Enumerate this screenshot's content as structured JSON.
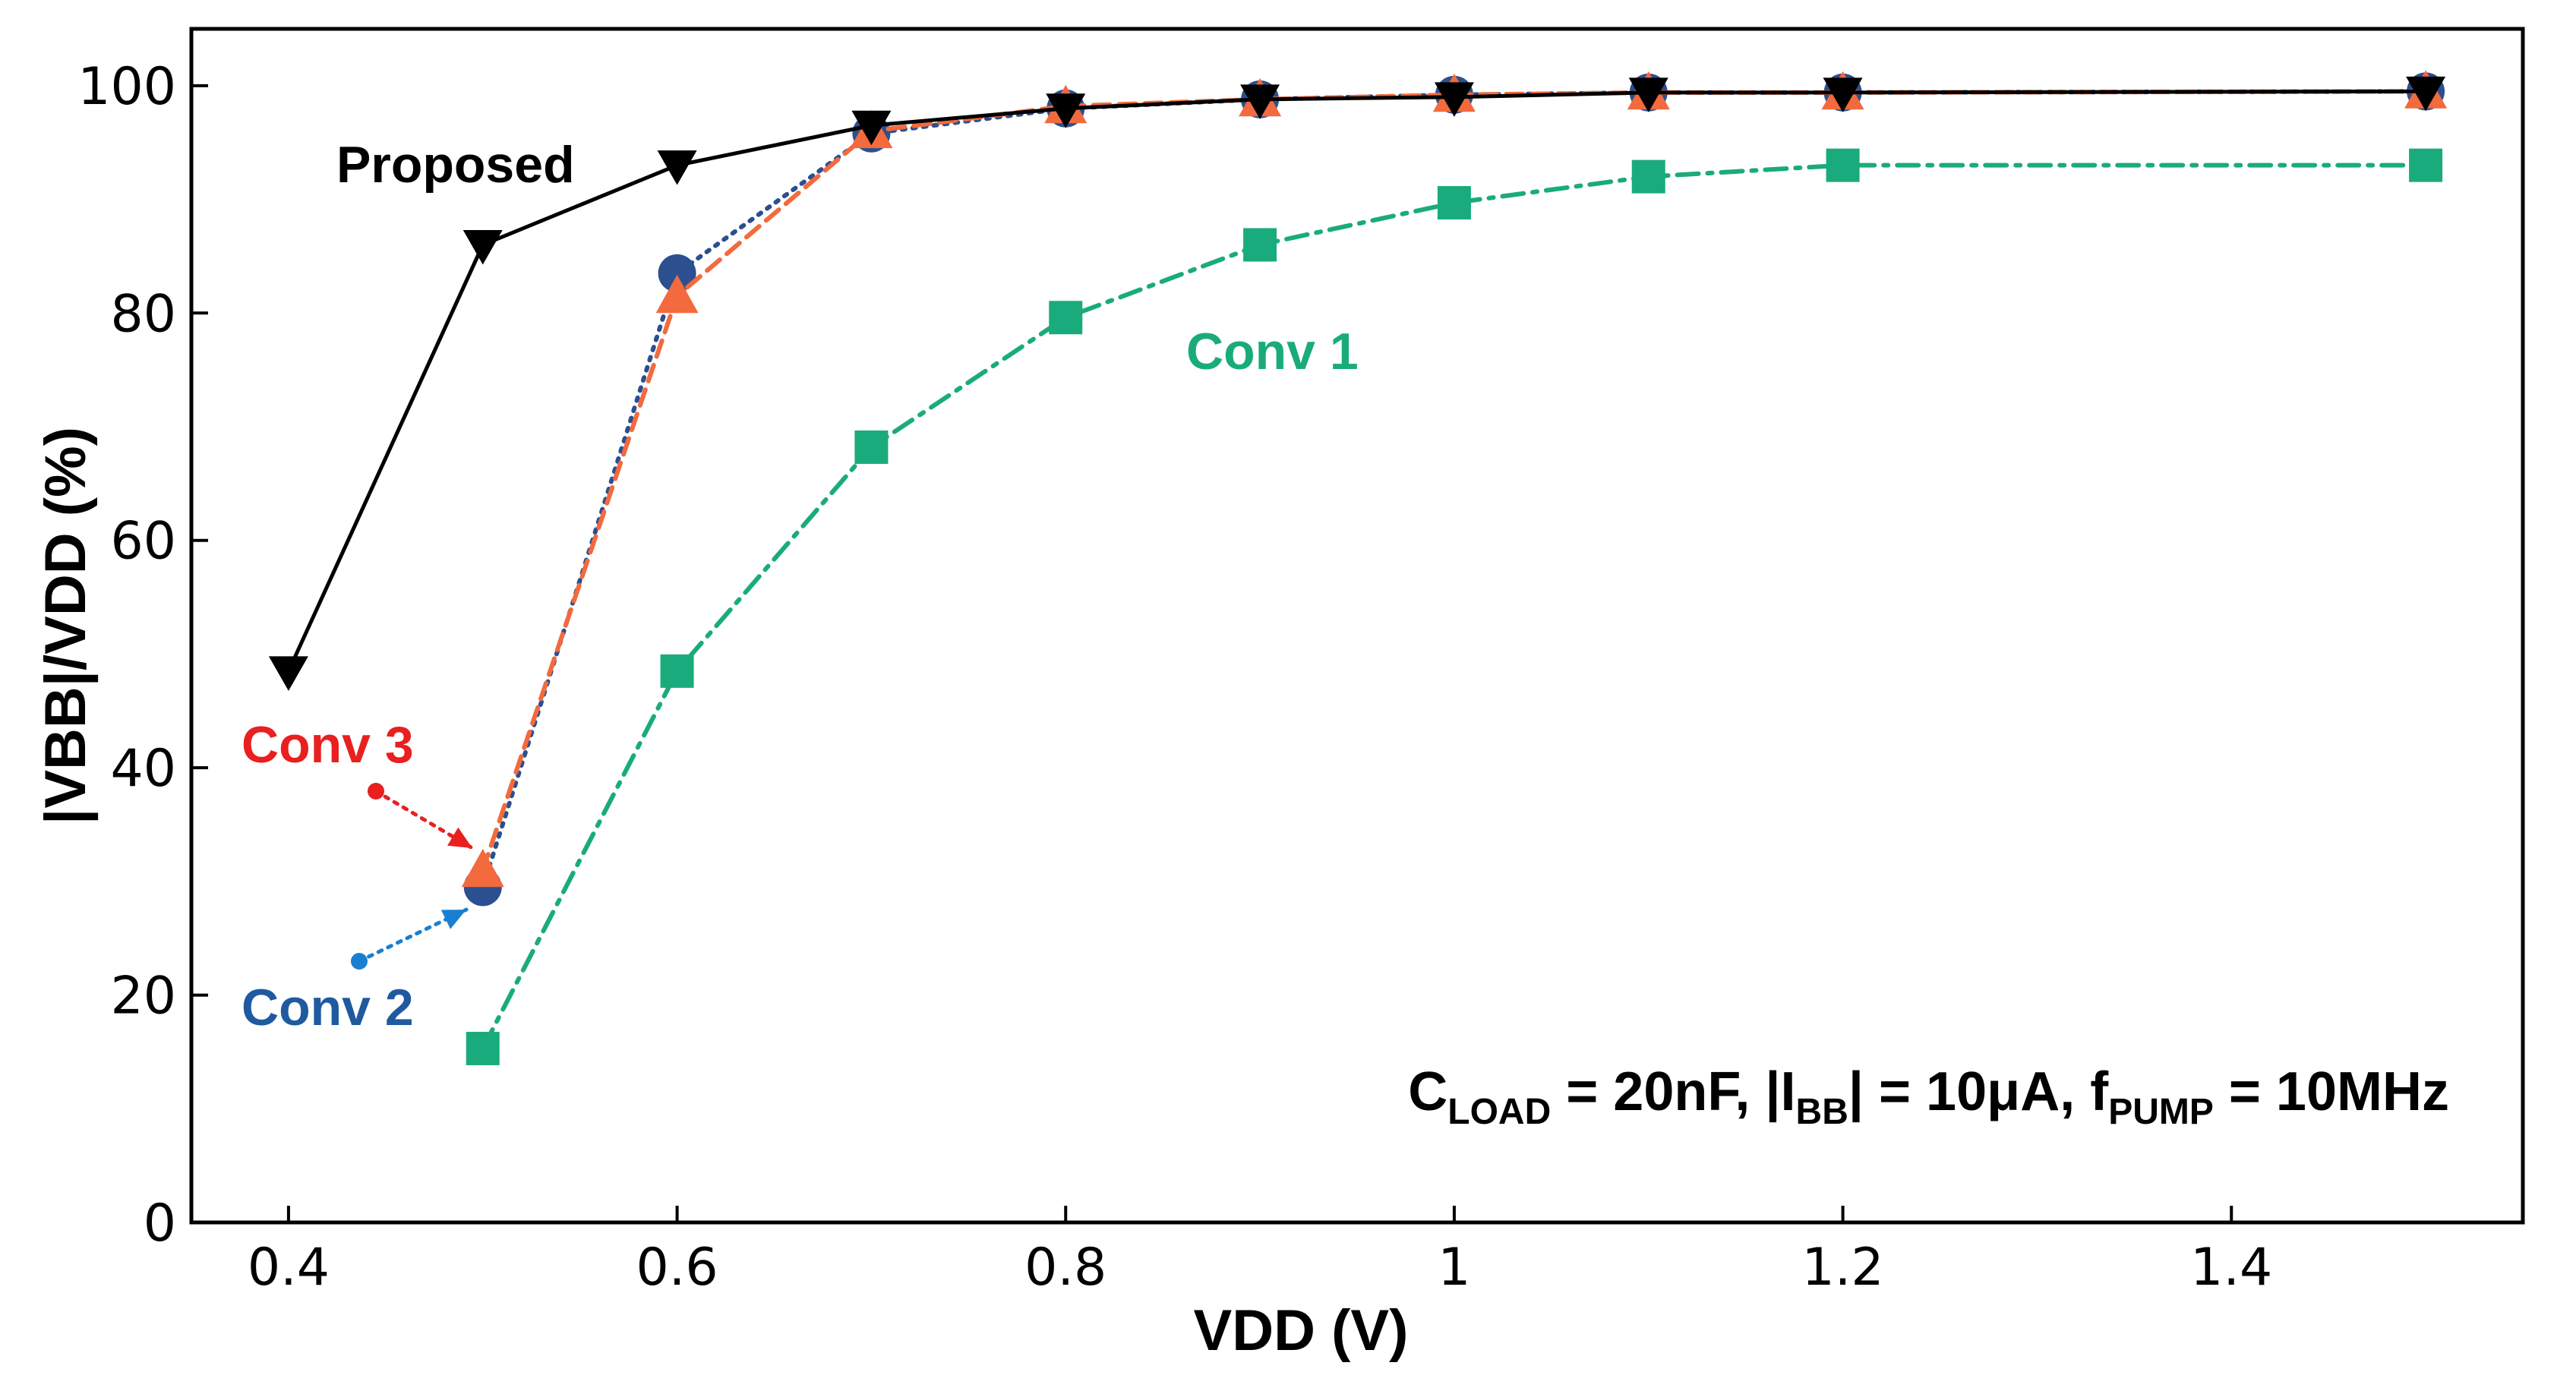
{
  "chart_data": {
    "type": "line",
    "title": "",
    "xlabel": "VDD (V)",
    "ylabel": "|VBB|/VDD (%)",
    "xlim": [
      0.35,
      1.55
    ],
    "ylim": [
      0,
      105
    ],
    "x_ticks": [
      0.4,
      0.6,
      0.8,
      1.0,
      1.2,
      1.4
    ],
    "x_tick_labels": [
      "0.4",
      "0.6",
      "0.8",
      "1",
      "1.2",
      "1.4"
    ],
    "y_ticks": [
      0,
      20,
      40,
      60,
      80,
      100
    ],
    "y_tick_labels": [
      "0",
      "20",
      "40",
      "60",
      "80",
      "100"
    ],
    "grid": false,
    "series": [
      {
        "name": "Conv 1",
        "color": "#1aab7c",
        "marker": "square",
        "line_style": "dashdot",
        "x": [
          0.5,
          0.6,
          0.7,
          0.8,
          0.9,
          1.0,
          1.1,
          1.2,
          1.5
        ],
        "values": [
          15.3,
          48.5,
          68.2,
          79.6,
          86.0,
          89.7,
          92.0,
          93.0,
          93.0
        ]
      },
      {
        "name": "Conv 2",
        "color": "#2b4f8f",
        "marker": "circle",
        "line_style": "dotted",
        "x": [
          0.5,
          0.6,
          0.7,
          0.8,
          0.9,
          1.0,
          1.1,
          1.2,
          1.5
        ],
        "values": [
          29.5,
          83.5,
          95.8,
          98.0,
          98.8,
          99.2,
          99.4,
          99.4,
          99.5
        ]
      },
      {
        "name": "Conv 3",
        "color": "#f26a3d",
        "marker": "triangle-up",
        "line_style": "dashed",
        "x": [
          0.5,
          0.6,
          0.7,
          0.8,
          0.9,
          1.0,
          1.1,
          1.2,
          1.5
        ],
        "values": [
          31.0,
          81.5,
          96.0,
          98.2,
          98.8,
          99.2,
          99.4,
          99.4,
          99.5
        ]
      },
      {
        "name": "Proposed",
        "color": "#000000",
        "marker": "triangle-down",
        "line_style": "solid",
        "x": [
          0.4,
          0.5,
          0.6,
          0.7,
          0.8,
          0.9,
          1.0,
          1.1,
          1.2,
          1.5
        ],
        "values": [
          48.5,
          86.0,
          93.0,
          96.5,
          98.0,
          98.8,
          99.0,
          99.4,
          99.4,
          99.5
        ]
      }
    ],
    "annotations": [
      {
        "text": "Proposed",
        "color": "#000000"
      },
      {
        "text": "Conv 1",
        "color": "#1aab7c"
      },
      {
        "text": "Conv 3",
        "color": "#e8201f"
      },
      {
        "text": "Conv 2",
        "color": "#1f5aa0"
      }
    ],
    "condition_note": {
      "c_main": "C",
      "c_sub": "LOAD",
      "c_rest": " = 20nF, |I",
      "i_sub": "BB",
      "i_rest": "| = 10μA, f",
      "f_sub": "PUMP",
      "f_rest": " = 10MHz"
    }
  }
}
